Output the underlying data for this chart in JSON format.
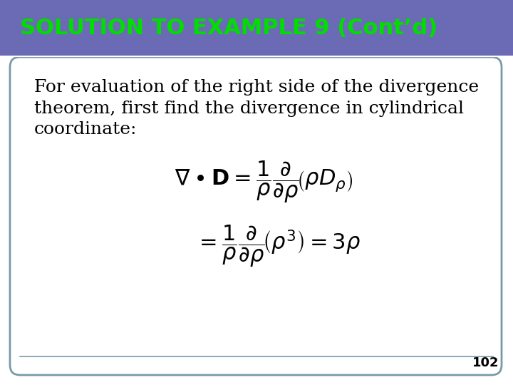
{
  "title": "SOLUTION TO EXAMPLE 9 (Cont’d)",
  "title_bg_color": "#6B6BB5",
  "title_text_color": "#00DD00",
  "slide_bg_color": "#FFFFFF",
  "border_color": "#7799AA",
  "text_line1": "For evaluation of the right side of the divergence",
  "text_line2": "theorem, first find the divergence in cylindrical",
  "text_line3": "coordinate:",
  "page_number": "102",
  "title_fontsize": 22,
  "body_fontsize": 18,
  "eq_fontsize": 22
}
